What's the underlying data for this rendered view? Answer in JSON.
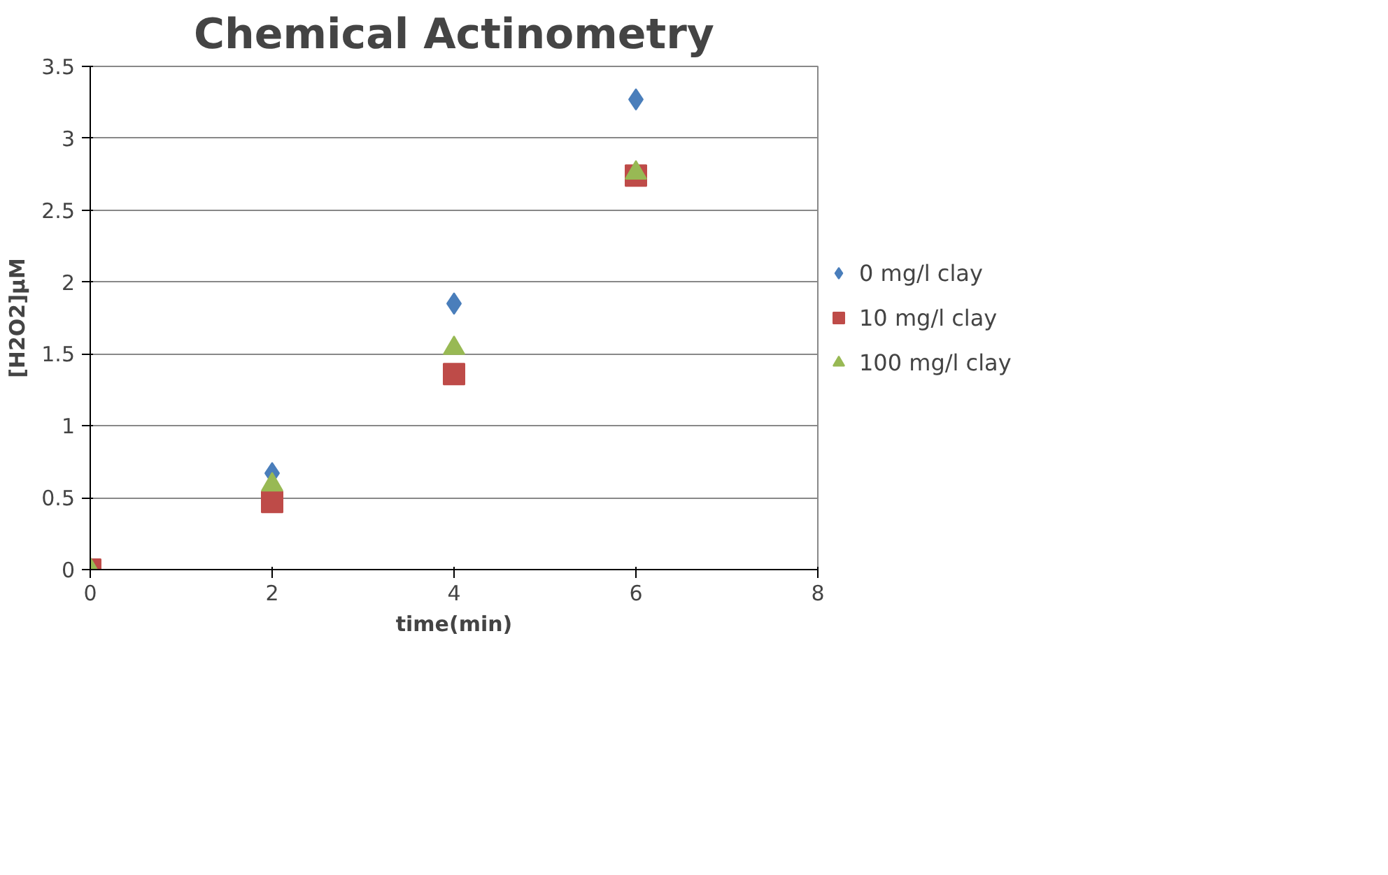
{
  "chart_data": {
    "type": "scatter",
    "title": "Chemical Actinometry",
    "xlabel": "time(min)",
    "ylabel": "[H2O2]µM",
    "x": [
      0,
      2,
      4,
      6
    ],
    "series": [
      {
        "name": "0 mg/l clay",
        "color": "#4a7ebb",
        "marker": "diamond",
        "values": [
          null,
          0.67,
          1.85,
          3.27
        ]
      },
      {
        "name": "10 mg/l clay",
        "color": "#be4b48",
        "marker": "square",
        "values": [
          0,
          0.47,
          1.36,
          2.74
        ]
      },
      {
        "name": "100 mg/l clay",
        "color": "#98b954",
        "marker": "triangle",
        "values": [
          0,
          0.59,
          1.54,
          2.76
        ]
      }
    ],
    "xlim": [
      0,
      8
    ],
    "xticks": [
      0,
      2,
      4,
      6,
      8
    ],
    "ylim": [
      0,
      3.5
    ],
    "yticks": [
      0,
      0.5,
      1,
      1.5,
      2,
      2.5,
      3,
      3.5
    ],
    "grid": "y",
    "legend": "right"
  }
}
